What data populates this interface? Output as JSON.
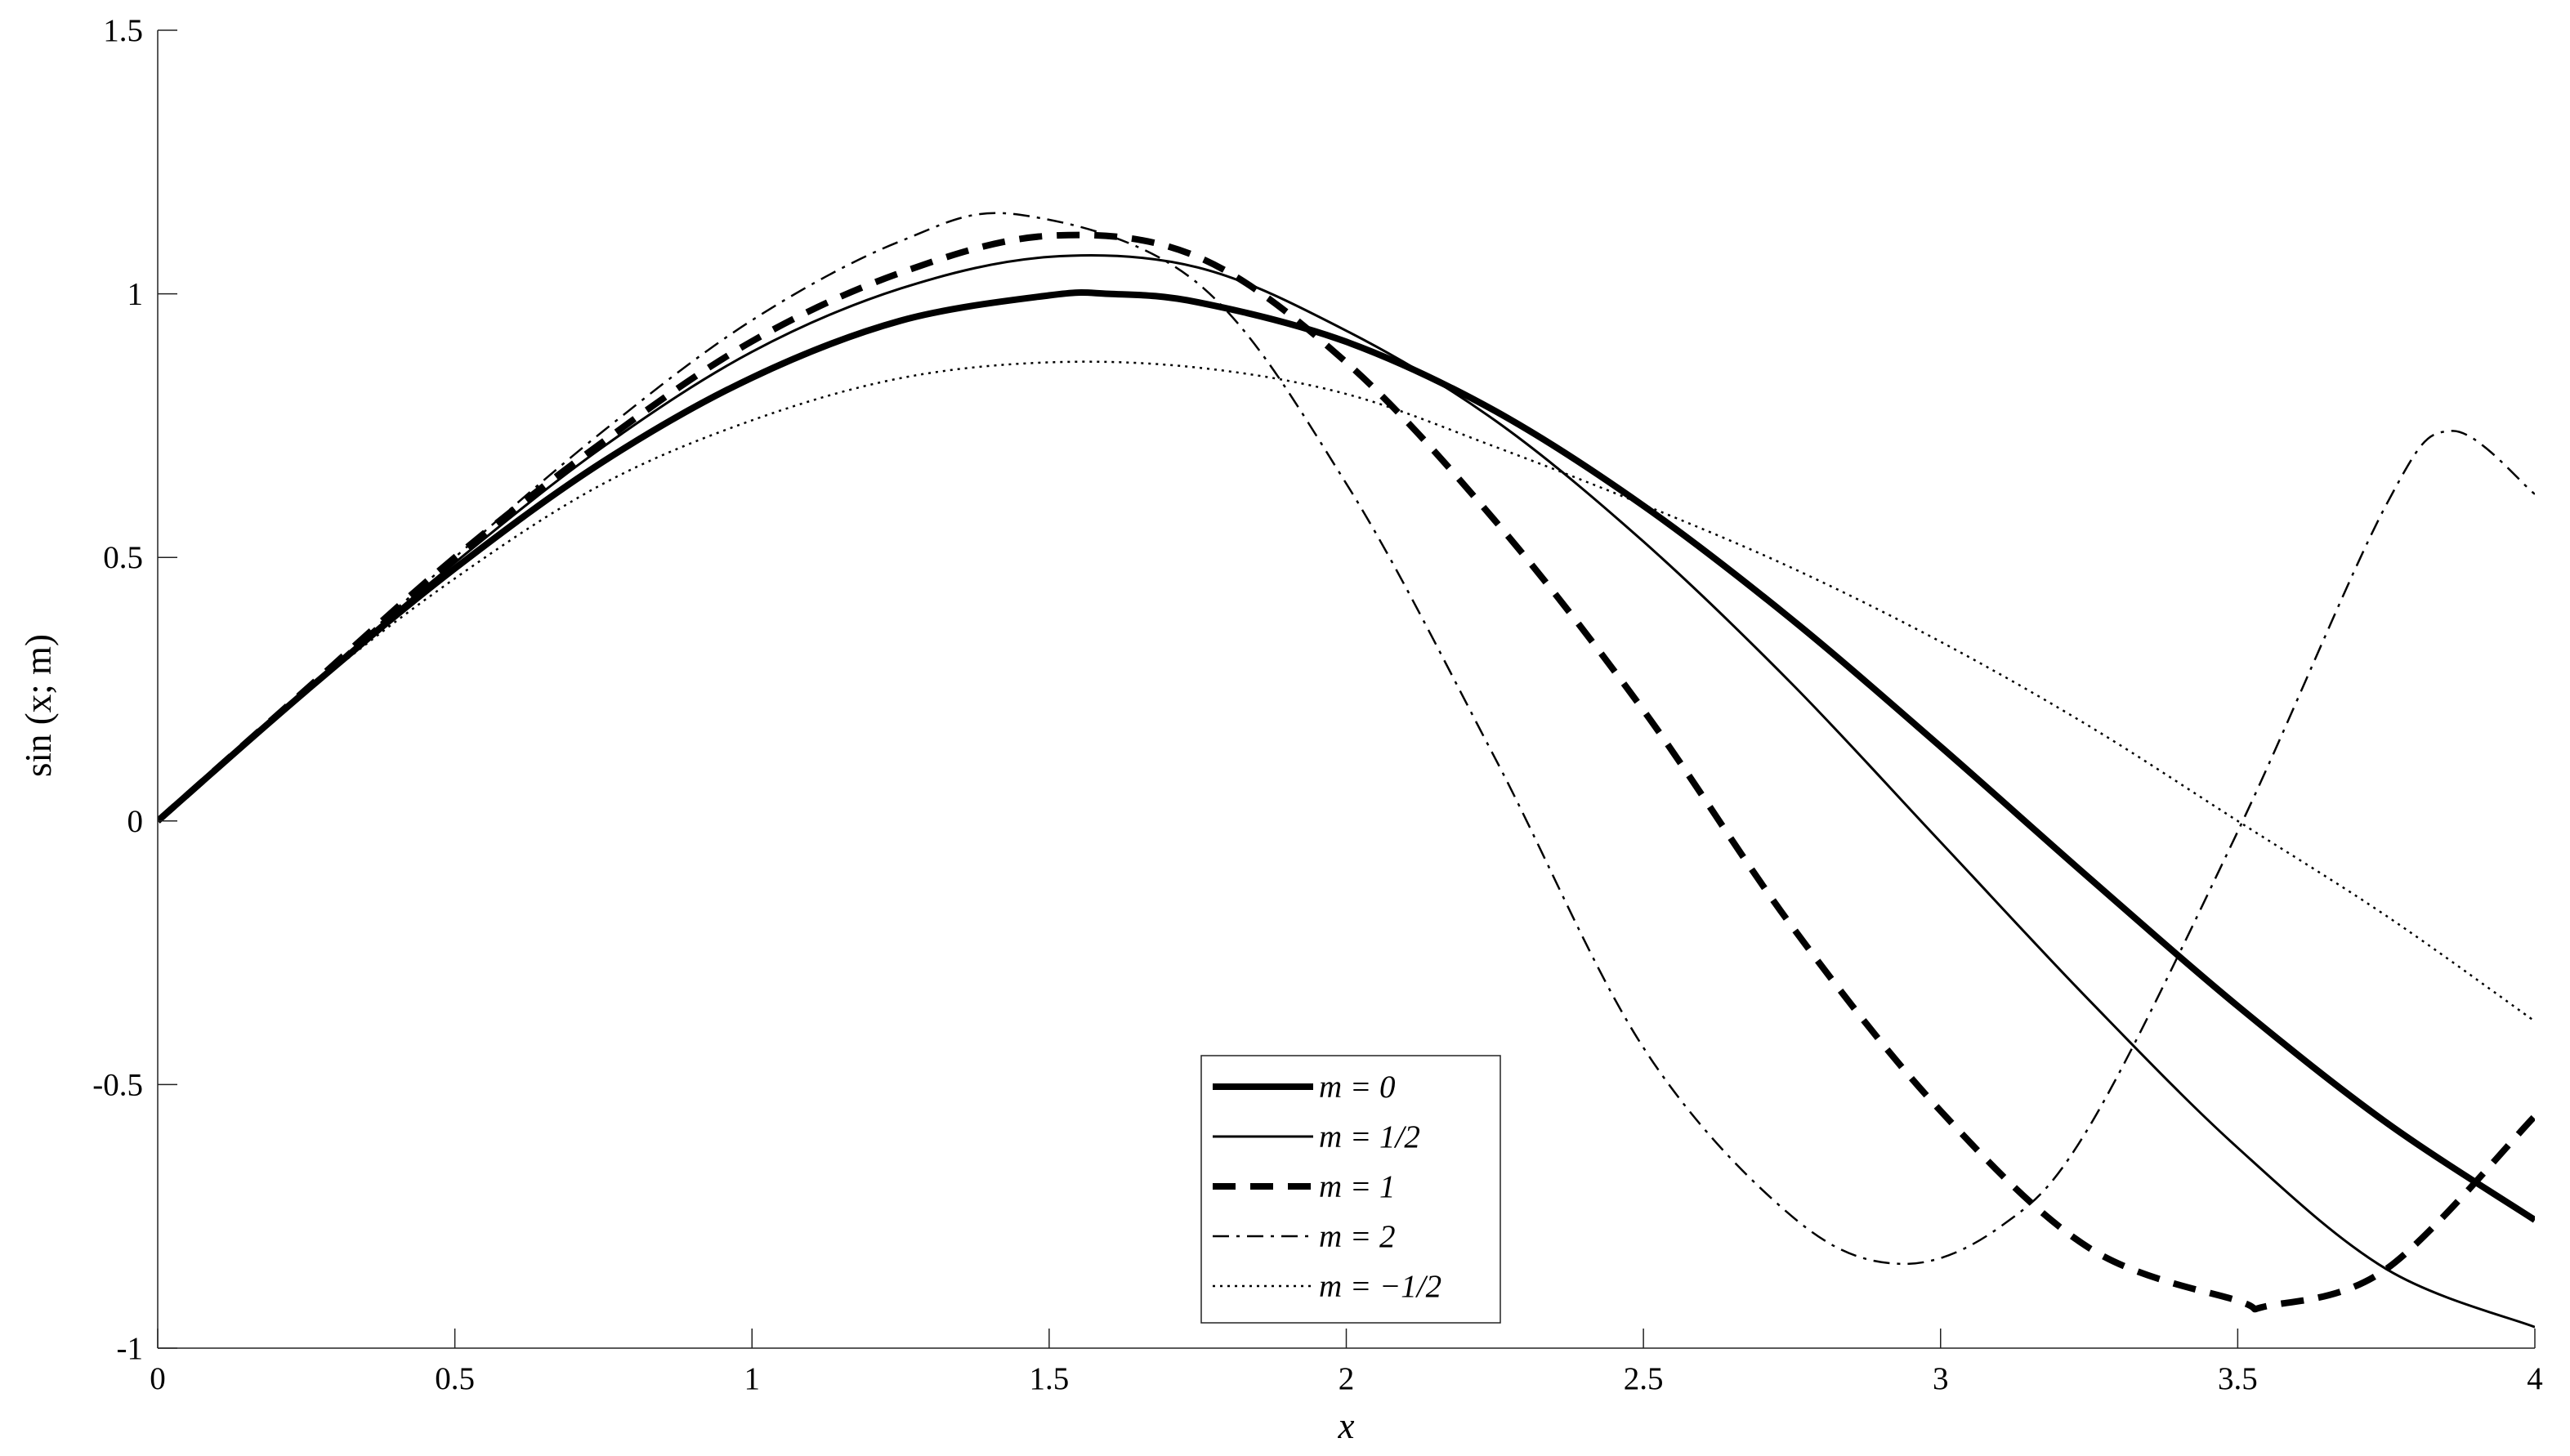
{
  "chart_data": {
    "type": "line",
    "title": "",
    "xlabel": "x",
    "ylabel": "sin (x; m)",
    "xlim": [
      0,
      4
    ],
    "ylim": [
      -1,
      1.5
    ],
    "xticks": [
      0,
      0.5,
      1,
      1.5,
      2,
      2.5,
      3,
      3.5,
      4
    ],
    "xtick_labels": [
      "0",
      "0.5",
      "1",
      "1.5",
      "2",
      "2.5",
      "3",
      "3.5",
      "4"
    ],
    "yticks": [
      -1,
      -0.5,
      0,
      0.5,
      1,
      1.5
    ],
    "ytick_labels": [
      "-1",
      "-0.5",
      "0",
      "0.5",
      "1",
      "1.5"
    ],
    "grid": false,
    "legend_position": "bottom-center",
    "series": [
      {
        "name": "m = 0",
        "style": "solid-thick",
        "color": "#000000",
        "x": [
          0,
          0.25,
          0.5,
          0.75,
          1,
          1.25,
          1.5,
          1.6,
          1.75,
          2,
          2.25,
          2.5,
          2.75,
          3,
          3.25,
          3.5,
          3.75,
          4
        ],
        "y": [
          0,
          0.247,
          0.479,
          0.682,
          0.841,
          0.949,
          0.997,
          1.0,
          0.984,
          0.909,
          0.778,
          0.598,
          0.382,
          0.141,
          -0.108,
          -0.351,
          -0.572,
          -0.757
        ]
      },
      {
        "name": "m = 1/2",
        "style": "solid-thin",
        "color": "#000000",
        "x": [
          0,
          0.25,
          0.5,
          0.75,
          1,
          1.25,
          1.5,
          1.75,
          2,
          2.25,
          2.5,
          2.75,
          3,
          3.25,
          3.5,
          3.75,
          4
        ],
        "y": [
          0,
          0.25,
          0.49,
          0.71,
          0.89,
          1.01,
          1.07,
          1.05,
          0.93,
          0.76,
          0.53,
          0.26,
          -0.04,
          -0.34,
          -0.62,
          -0.85,
          -0.96
        ]
      },
      {
        "name": "m = 1",
        "style": "dashed-thick",
        "color": "#000000",
        "x": [
          0,
          0.25,
          0.5,
          0.75,
          1,
          1.25,
          1.5,
          1.75,
          2,
          2.25,
          2.5,
          2.75,
          3,
          3.25,
          3.5,
          3.55,
          3.75,
          4
        ],
        "y": [
          0,
          0.25,
          0.5,
          0.72,
          0.91,
          1.04,
          1.11,
          1.07,
          0.87,
          0.57,
          0.21,
          -0.2,
          -0.55,
          -0.81,
          -0.91,
          -0.92,
          -0.85,
          -0.56
        ]
      },
      {
        "name": "m = 2",
        "style": "dashdot-thin",
        "color": "#000000",
        "x": [
          0,
          0.25,
          0.5,
          0.75,
          1,
          1.25,
          1.45,
          1.75,
          2,
          2.25,
          2.5,
          2.75,
          2.93,
          3.1,
          3.25,
          3.5,
          3.75,
          3.86,
          4
        ],
        "y": [
          0,
          0.25,
          0.5,
          0.74,
          0.95,
          1.1,
          1.15,
          1.02,
          0.64,
          0.12,
          -0.43,
          -0.75,
          -0.84,
          -0.77,
          -0.58,
          -0.02,
          0.6,
          0.74,
          0.62
        ]
      },
      {
        "name": "m = −1/2",
        "style": "dotted-thin",
        "color": "#000000",
        "x": [
          0,
          0.25,
          0.5,
          0.75,
          1,
          1.25,
          1.5,
          1.75,
          2,
          2.25,
          2.5,
          2.75,
          3,
          3.25,
          3.5,
          3.75,
          4
        ],
        "y": [
          0,
          0.245,
          0.46,
          0.64,
          0.76,
          0.84,
          0.87,
          0.86,
          0.81,
          0.71,
          0.6,
          0.48,
          0.34,
          0.18,
          0.0,
          -0.18,
          -0.38
        ]
      }
    ]
  }
}
